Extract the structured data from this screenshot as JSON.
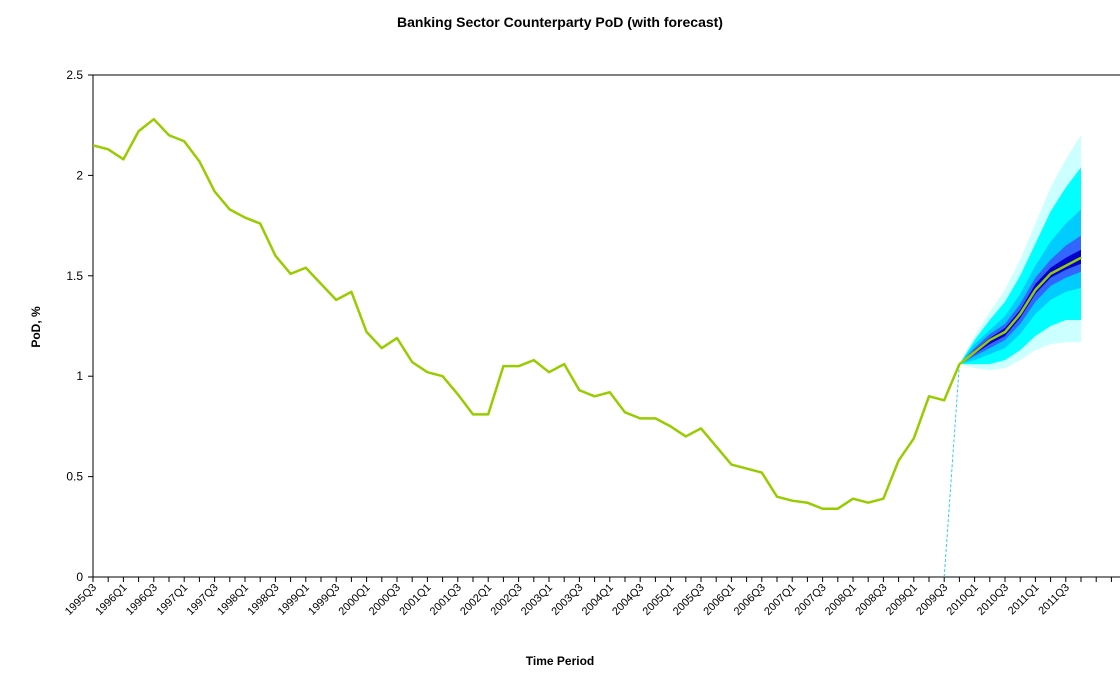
{
  "chart_data": {
    "type": "line",
    "title": "Banking Sector Counterparty PoD (with forecast)",
    "xlabel": "Time Period",
    "ylabel": "PoD, %",
    "ylim": [
      0,
      2.5
    ],
    "y_ticks": [
      "0",
      "0.5",
      "1",
      "1.5",
      "2",
      "2.5"
    ],
    "y_tick_values": [
      0,
      0.5,
      1,
      1.5,
      2,
      2.5
    ],
    "x_tick_labels": [
      "1995Q3",
      "1996Q1",
      "1996Q3",
      "1997Q1",
      "1997Q3",
      "1998Q1",
      "1998Q3",
      "1999Q1",
      "1999Q3",
      "2000Q1",
      "2000Q3",
      "2001Q1",
      "2001Q3",
      "2002Q1",
      "2002Q3",
      "2003Q1",
      "2003Q3",
      "2004Q1",
      "2004Q3",
      "2005Q1",
      "2005Q3",
      "2006Q1",
      "2006Q3",
      "2007Q1",
      "2007Q3",
      "2008Q1",
      "2008Q3",
      "2009Q1",
      "2009Q3",
      "2010Q1",
      "2010Q3",
      "2011Q1",
      "2011Q3"
    ],
    "grid": false,
    "series": [
      {
        "color": "#99cc00",
        "x": [
          "1995Q3",
          "1995Q4",
          "1996Q1",
          "1996Q2",
          "1996Q3",
          "1996Q4",
          "1997Q1",
          "1997Q2",
          "1997Q3",
          "1997Q4",
          "1998Q1",
          "1998Q2",
          "1998Q3",
          "1998Q4",
          "1999Q1",
          "1999Q2",
          "1999Q3",
          "1999Q4",
          "2000Q1",
          "2000Q2",
          "2000Q3",
          "2000Q4",
          "2001Q1",
          "2001Q2",
          "2001Q3",
          "2001Q4",
          "2002Q1",
          "2002Q2",
          "2002Q3",
          "2002Q4",
          "2003Q1",
          "2003Q2",
          "2003Q3",
          "2003Q4",
          "2004Q1",
          "2004Q2",
          "2004Q3",
          "2004Q4",
          "2005Q1",
          "2005Q2",
          "2005Q3",
          "2005Q4",
          "2006Q1",
          "2006Q2",
          "2006Q3",
          "2006Q4",
          "2007Q1",
          "2007Q2",
          "2007Q3",
          "2007Q4",
          "2008Q1",
          "2008Q2",
          "2008Q3",
          "2008Q4",
          "2009Q1",
          "2009Q2",
          "2009Q3",
          "2009Q4"
        ],
        "values": [
          2.15,
          2.13,
          2.08,
          2.22,
          2.28,
          2.2,
          2.17,
          2.07,
          1.92,
          1.83,
          1.79,
          1.76,
          1.6,
          1.51,
          1.54,
          1.46,
          1.38,
          1.42,
          1.22,
          1.14,
          1.19,
          1.07,
          1.02,
          1.0,
          0.91,
          0.81,
          0.81,
          1.05,
          1.05,
          1.08,
          1.02,
          1.06,
          0.93,
          0.9,
          0.92,
          0.82,
          0.79,
          0.79,
          0.75,
          0.7,
          0.74,
          0.65,
          0.56,
          0.54,
          0.52,
          0.4,
          0.38,
          0.37,
          0.34,
          0.34,
          0.39,
          0.37,
          0.39,
          0.58,
          0.69,
          0.9,
          0.88,
          1.06
        ]
      },
      {
        "color": "#99cc00",
        "x": [
          "2009Q4",
          "2010Q1",
          "2010Q2",
          "2010Q3",
          "2010Q4",
          "2011Q1",
          "2011Q2",
          "2011Q3",
          "2011Q4"
        ],
        "values": [
          1.06,
          1.12,
          1.18,
          1.22,
          1.31,
          1.43,
          1.51,
          1.55,
          1.59
        ]
      }
    ],
    "fan": {
      "x": [
        "2009Q4",
        "2010Q1",
        "2010Q2",
        "2010Q3",
        "2010Q4",
        "2011Q1",
        "2011Q2",
        "2011Q3",
        "2011Q4"
      ],
      "colors": [
        "#ccffff",
        "#00ffff",
        "#00ccff",
        "#3366ff",
        "#0000cc"
      ],
      "bands": [
        {
          "lower": [
            1.06,
            1.04,
            1.03,
            1.04,
            1.08,
            1.13,
            1.16,
            1.17,
            1.17
          ],
          "upper": [
            1.06,
            1.2,
            1.32,
            1.43,
            1.58,
            1.76,
            1.94,
            2.08,
            2.2
          ]
        },
        {
          "lower": [
            1.06,
            1.06,
            1.06,
            1.08,
            1.13,
            1.2,
            1.25,
            1.28,
            1.28
          ],
          "upper": [
            1.06,
            1.18,
            1.28,
            1.37,
            1.5,
            1.66,
            1.82,
            1.94,
            2.04
          ]
        },
        {
          "lower": [
            1.06,
            1.08,
            1.11,
            1.14,
            1.21,
            1.31,
            1.38,
            1.42,
            1.44
          ],
          "upper": [
            1.06,
            1.16,
            1.23,
            1.3,
            1.41,
            1.55,
            1.67,
            1.76,
            1.83
          ]
        },
        {
          "lower": [
            1.06,
            1.1,
            1.14,
            1.18,
            1.26,
            1.37,
            1.45,
            1.49,
            1.52
          ],
          "upper": [
            1.06,
            1.14,
            1.21,
            1.26,
            1.36,
            1.49,
            1.58,
            1.65,
            1.7
          ]
        },
        {
          "lower": [
            1.06,
            1.11,
            1.16,
            1.2,
            1.29,
            1.41,
            1.49,
            1.53,
            1.56
          ],
          "upper": [
            1.06,
            1.13,
            1.19,
            1.24,
            1.33,
            1.46,
            1.54,
            1.59,
            1.63
          ]
        }
      ]
    },
    "divider": {
      "x_from": "2009Q3",
      "x_to": "2009Q4",
      "y_from": 0,
      "y_to": 1.06,
      "color": "#33ccff"
    }
  }
}
